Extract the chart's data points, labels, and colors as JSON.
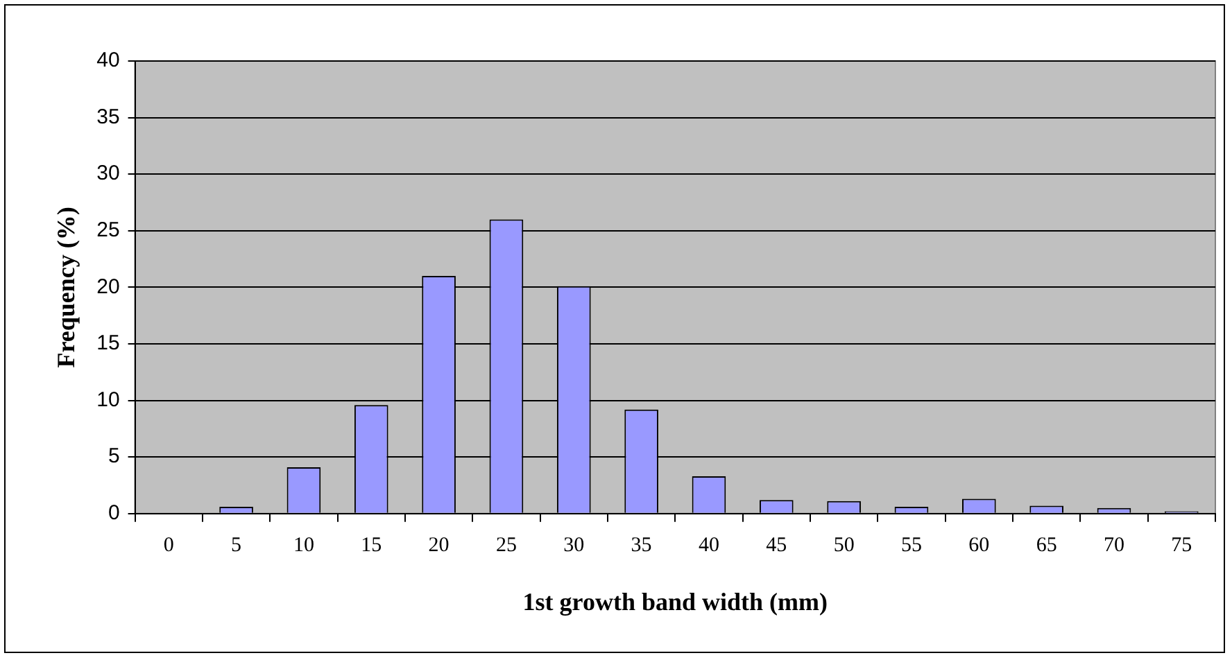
{
  "chart_data": {
    "type": "bar",
    "xlabel": "1st growth band width (mm)",
    "ylabel": "Frequency (%)",
    "categories": [
      "0",
      "5",
      "10",
      "15",
      "20",
      "25",
      "30",
      "35",
      "40",
      "45",
      "50",
      "55",
      "60",
      "65",
      "70",
      "75"
    ],
    "values": [
      0,
      0.6,
      4.1,
      9.6,
      21,
      26,
      20.1,
      9.2,
      3.3,
      1.2,
      1.1,
      0.6,
      1.3,
      0.7,
      0.5,
      0.2
    ],
    "color": "#9999ff",
    "ylim": [
      0,
      40
    ],
    "yticks": [
      0,
      5,
      10,
      15,
      20,
      25,
      30,
      35,
      40
    ],
    "grid": "y",
    "legend": false
  }
}
